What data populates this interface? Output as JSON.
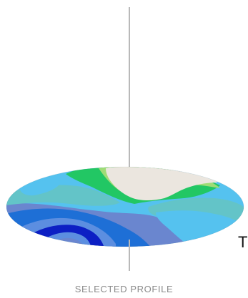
{
  "map": {
    "colors": {
      "tan": "#ebe6df",
      "light_green": "#9fdc76",
      "green": "#22c764",
      "teal": "#63c4c8",
      "sky": "#55c2ef",
      "mid_blue": "#5c8ee0",
      "blue": "#1e6fd6",
      "deep_blue": "#0c1fc4",
      "slate": "#6a86cf",
      "line": "#b9b9b9"
    }
  },
  "labels": {
    "cut_text": "TI-",
    "caption": "SELECTED PROFILE"
  }
}
